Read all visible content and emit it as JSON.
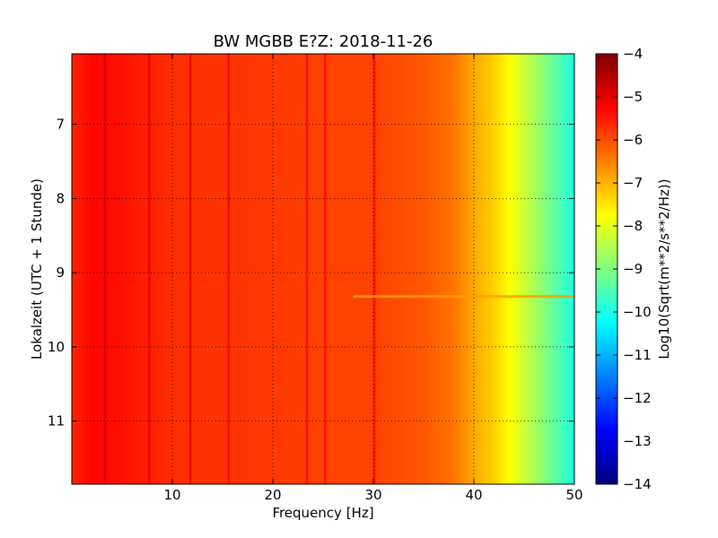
{
  "chart_data": {
    "type": "heatmap",
    "title": "BW MGBB E?Z: 2018-11-26",
    "xlabel": "Frequency [Hz]",
    "ylabel": "Lokalzeit (UTC + 1 Stunde)",
    "colorbar_label": "Log10(Sqrt(m**2/s**2/Hz))",
    "xlim": [
      0,
      50
    ],
    "ylim": [
      11.85,
      6.05
    ],
    "y_inverted": true,
    "x_ticks": [
      10,
      20,
      30,
      40,
      50
    ],
    "x_tick_labels": [
      "10",
      "20",
      "30",
      "40",
      "50"
    ],
    "y_ticks": [
      7,
      8,
      9,
      10,
      11
    ],
    "y_tick_labels": [
      "7",
      "8",
      "9",
      "10",
      "11"
    ],
    "color_range": [
      -14,
      -4
    ],
    "colorbar_ticks": [
      -4,
      -5,
      -6,
      -7,
      -8,
      -9,
      -10,
      -11,
      -12,
      -13,
      -14
    ],
    "colorbar_tick_labels": [
      "−4",
      "−5",
      "−6",
      "−7",
      "−8",
      "−9",
      "−10",
      "−11",
      "−12",
      "−13",
      "−14"
    ],
    "colormap": "jet",
    "grid": true,
    "frequency_profile": {
      "frequency_hz": [
        0,
        2,
        5,
        10,
        15,
        20,
        25,
        30,
        35,
        38,
        40,
        42,
        44,
        46,
        48,
        50
      ],
      "log10_amplitude": [
        -5.6,
        -5.3,
        -5.4,
        -5.7,
        -5.75,
        -5.8,
        -5.9,
        -5.9,
        -6.1,
        -6.4,
        -6.9,
        -7.3,
        -7.9,
        -8.6,
        -9.3,
        -10.0
      ]
    },
    "spectral_lines_hz": [
      3.3,
      7.7,
      11.8,
      15.6,
      23.4,
      25.2,
      30.1
    ],
    "horizontal_features": [
      {
        "time_h": 9.32,
        "f_start_hz": 28,
        "f_end_hz": 50,
        "log10_amplitude": -6.8
      }
    ]
  }
}
